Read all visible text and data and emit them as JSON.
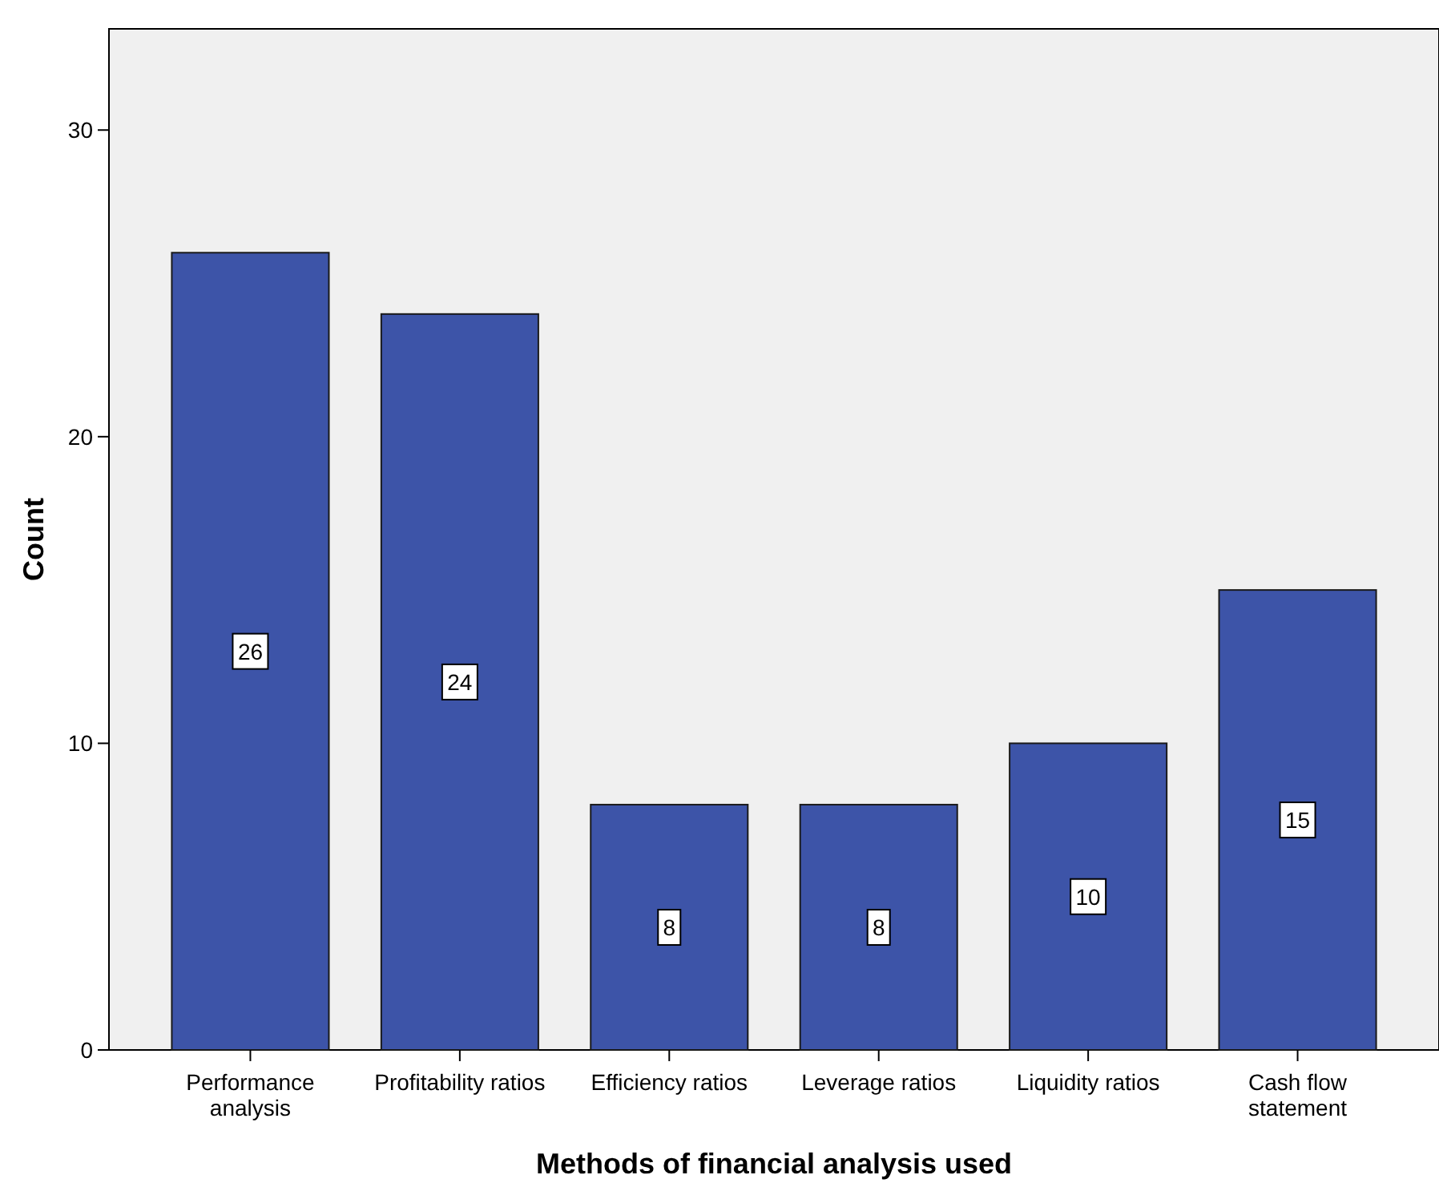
{
  "chart_data": {
    "type": "bar",
    "xlabel": "Methods of financial analysis used",
    "ylabel": "Count",
    "categories": [
      "Performance\nanalysis",
      "Profitability ratios",
      "Efficiency ratios",
      "Leverage ratios",
      "Liquidity ratios",
      "Cash flow\nstatement"
    ],
    "values": [
      26,
      24,
      8,
      8,
      10,
      15
    ],
    "color": "#3d54a8",
    "ylim": [
      0,
      33.3
    ],
    "yticks": [
      0,
      10,
      20,
      30
    ],
    "grid": false,
    "data_labels": true
  }
}
